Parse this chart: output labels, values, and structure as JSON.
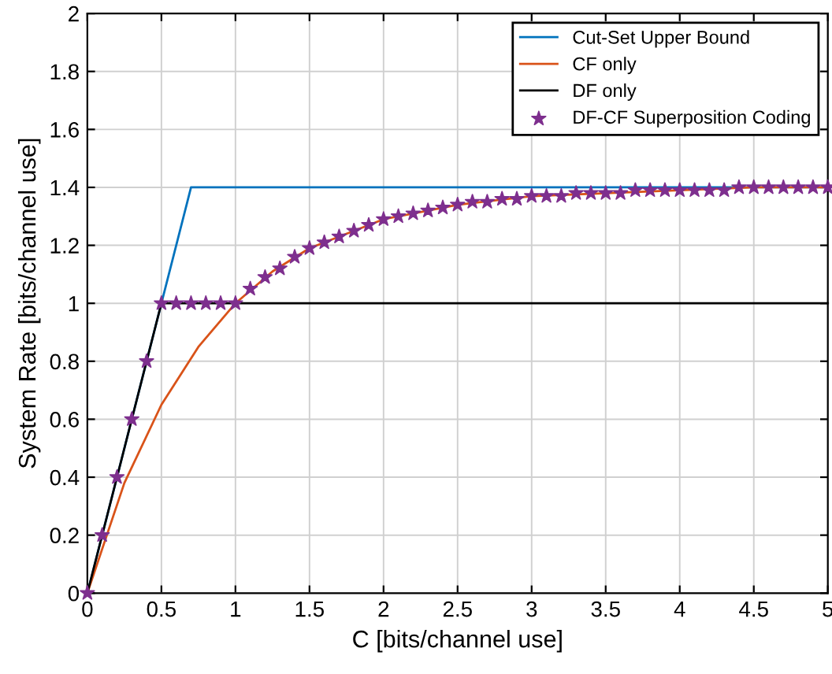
{
  "chart_data": {
    "type": "line",
    "xlabel": "C [bits/channel use]",
    "ylabel": "System Rate [bits/channel use]",
    "xlim": [
      0,
      5
    ],
    "ylim": [
      0,
      2
    ],
    "xticks": [
      0,
      0.5,
      1,
      1.5,
      2,
      2.5,
      3,
      3.5,
      4,
      4.5,
      5
    ],
    "yticks": [
      0,
      0.2,
      0.4,
      0.6,
      0.8,
      1,
      1.2,
      1.4,
      1.6,
      1.8,
      2
    ],
    "grid": true,
    "legend": "top right",
    "series": [
      {
        "name": "Cut-Set Upper Bound",
        "color": "#0072bd",
        "x": [
          0,
          0.7,
          5
        ],
        "values": [
          0,
          1.4,
          1.4
        ]
      },
      {
        "name": "CF only",
        "color": "#d95319",
        "x": [
          0,
          0.25,
          0.5,
          0.75,
          1,
          1.25,
          1.5,
          2,
          2.5,
          3,
          3.5,
          4,
          4.5,
          5
        ],
        "values": [
          0,
          0.38,
          0.65,
          0.85,
          1.0,
          1.11,
          1.19,
          1.29,
          1.34,
          1.37,
          1.38,
          1.39,
          1.4,
          1.4
        ]
      },
      {
        "name": "DF only",
        "color": "#000000",
        "x": [
          0,
          0.5,
          5
        ],
        "values": [
          0,
          1,
          1
        ]
      },
      {
        "name": "DF-CF Superposition Coding",
        "type": "scatter",
        "marker": "star",
        "color": "#7e2f8e",
        "x": [
          0,
          0.1,
          0.2,
          0.3,
          0.4,
          0.5,
          0.6,
          0.7,
          0.8,
          0.9,
          1.0,
          1.1,
          1.2,
          1.3,
          1.4,
          1.5,
          1.6,
          1.7,
          1.8,
          1.9,
          2.0,
          2.1,
          2.2,
          2.3,
          2.4,
          2.5,
          2.6,
          2.7,
          2.8,
          2.9,
          3.0,
          3.1,
          3.2,
          3.3,
          3.4,
          3.5,
          3.6,
          3.7,
          3.8,
          3.9,
          4.0,
          4.1,
          4.2,
          4.3,
          4.4,
          4.5,
          4.6,
          4.7,
          4.8,
          4.9,
          5.0
        ],
        "values": [
          0,
          0.2,
          0.4,
          0.6,
          0.8,
          1,
          1,
          1,
          1,
          1,
          1,
          1.05,
          1.09,
          1.12,
          1.16,
          1.19,
          1.21,
          1.23,
          1.25,
          1.27,
          1.29,
          1.3,
          1.31,
          1.32,
          1.33,
          1.34,
          1.35,
          1.35,
          1.36,
          1.36,
          1.37,
          1.37,
          1.37,
          1.38,
          1.38,
          1.38,
          1.38,
          1.39,
          1.39,
          1.39,
          1.39,
          1.39,
          1.39,
          1.39,
          1.4,
          1.4,
          1.4,
          1.4,
          1.4,
          1.4,
          1.4
        ]
      }
    ]
  }
}
